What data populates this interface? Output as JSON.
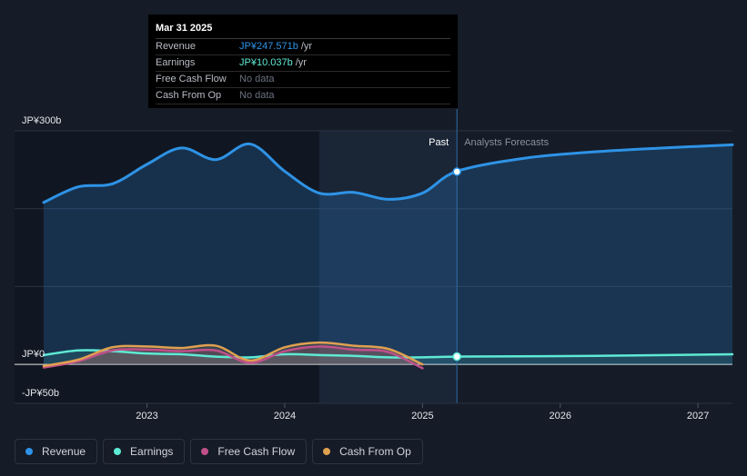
{
  "tooltip": {
    "date": "Mar 31 2025",
    "rows": [
      {
        "label": "Revenue",
        "value": "JP¥247.571b",
        "unit": "/yr"
      },
      {
        "label": "Earnings",
        "value": "JP¥10.037b",
        "unit": "/yr"
      },
      {
        "label": "Free Cash Flow",
        "value": "No data",
        "unit": ""
      },
      {
        "label": "Cash From Op",
        "value": "No data",
        "unit": ""
      }
    ]
  },
  "legend": [
    {
      "label": "Revenue",
      "color": "#2e93e6"
    },
    {
      "label": "Earnings",
      "color": "#5eead4"
    },
    {
      "label": "Free Cash Flow",
      "color": "#c0508a"
    },
    {
      "label": "Cash From Op",
      "color": "#e0a050"
    }
  ],
  "chart_data": {
    "type": "line",
    "title": "",
    "xlabel": "",
    "ylabel": "",
    "y_unit": "JP¥ billions",
    "ylim": [
      -50,
      300
    ],
    "y_tick_labels": [
      "JP¥300b",
      "JP¥0",
      "-JP¥50b"
    ],
    "xlim": [
      2022.25,
      2027.25
    ],
    "x_tick_labels": [
      "2023",
      "2024",
      "2025",
      "2026",
      "2027"
    ],
    "x_tick_values": [
      2023,
      2024,
      2025,
      2026,
      2027
    ],
    "past_label": "Past",
    "forecast_label": "Analysts Forecasts",
    "divider_x": 2025.25,
    "highlight_start_x": 2024.25,
    "series": [
      {
        "name": "Revenue",
        "color": "#2e93e6",
        "x": [
          2022.25,
          2022.5,
          2022.75,
          2023.0,
          2023.25,
          2023.5,
          2023.75,
          2024.0,
          2024.25,
          2024.5,
          2024.75,
          2025.0,
          2025.25,
          2025.75,
          2026.25,
          2026.75,
          2027.25
        ],
        "values": [
          208,
          228,
          232,
          257,
          278,
          263,
          283,
          248,
          220,
          221,
          212,
          220,
          248,
          265,
          273,
          278,
          282
        ]
      },
      {
        "name": "Earnings",
        "color": "#5eead4",
        "x": [
          2022.25,
          2022.5,
          2022.75,
          2023.0,
          2023.25,
          2023.5,
          2023.75,
          2024.0,
          2024.25,
          2024.5,
          2024.75,
          2025.0,
          2025.25,
          2026.25,
          2027.25
        ],
        "values": [
          12,
          18,
          17,
          14,
          13,
          10,
          9,
          13,
          12,
          11,
          9,
          9,
          10,
          11,
          13
        ]
      },
      {
        "name": "Free Cash Flow",
        "color": "#c0508a",
        "x": [
          2022.25,
          2022.5,
          2022.75,
          2023.0,
          2023.25,
          2023.5,
          2023.75,
          2024.0,
          2024.25,
          2024.5,
          2024.75,
          2025.0
        ],
        "values": [
          -4,
          4,
          18,
          19,
          17,
          18,
          2,
          17,
          23,
          19,
          16,
          -5
        ]
      },
      {
        "name": "Cash From Op",
        "color": "#e0a050",
        "x": [
          2022.25,
          2022.5,
          2022.75,
          2023.0,
          2023.25,
          2023.5,
          2023.75,
          2024.0,
          2024.25,
          2024.5,
          2024.75,
          2025.0
        ],
        "values": [
          -2,
          6,
          22,
          23,
          21,
          24,
          5,
          22,
          28,
          24,
          20,
          0
        ]
      }
    ],
    "markers": [
      {
        "series": "Revenue",
        "x": 2025.25,
        "value": 247.571
      },
      {
        "series": "Earnings",
        "x": 2025.25,
        "value": 10.037
      }
    ]
  }
}
